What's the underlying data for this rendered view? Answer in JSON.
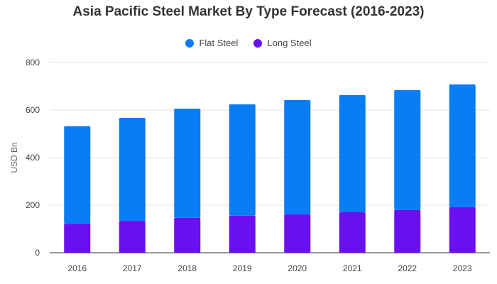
{
  "chart_data": {
    "type": "bar",
    "stacked": true,
    "title": "Asia Pacific Steel Market By Type Forecast (2016-2023)",
    "xlabel": "",
    "ylabel": "USD Bn",
    "categories": [
      "2016",
      "2017",
      "2018",
      "2019",
      "2020",
      "2021",
      "2022",
      "2023"
    ],
    "series": [
      {
        "name": "Long Steel",
        "color": "#6a0ff0",
        "values": [
          122,
          134,
          147,
          156,
          162,
          170,
          180,
          192
        ]
      },
      {
        "name": "Flat Steel",
        "color": "#0a7cf5",
        "values": [
          410,
          433,
          459,
          468,
          480,
          493,
          504,
          516
        ]
      }
    ],
    "ylim": [
      0,
      800
    ],
    "yticks": [
      0,
      200,
      400,
      600,
      800
    ],
    "grid": true,
    "legend_position": "top-center"
  }
}
